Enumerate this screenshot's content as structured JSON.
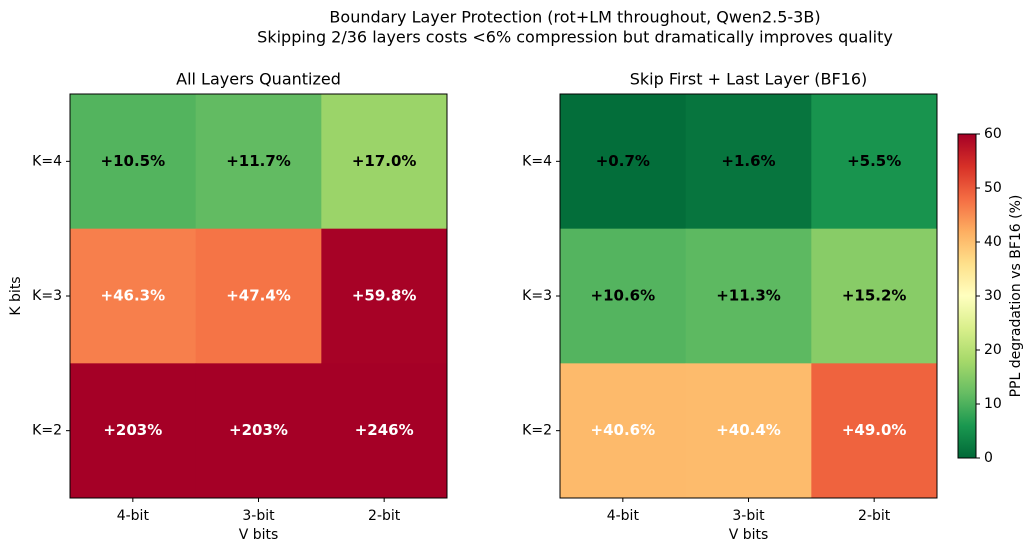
{
  "title": "Boundary Layer Protection (rot+LM throughout, Qwen2.5-3B)",
  "subtitle": "Skipping 2/36 layers costs <6% compression but dramatically improves quality",
  "colorbar": {
    "label": "PPL degradation vs BF16 (%)",
    "colormap": "RdYlGn_r",
    "lim": [
      0,
      60
    ],
    "ticks": [
      0,
      10,
      20,
      30,
      40,
      50,
      60
    ]
  },
  "chart_data": [
    {
      "type": "heatmap",
      "title": "All Layers Quantized",
      "xlabel": "V bits",
      "ylabel": "K bits",
      "x": [
        "4-bit",
        "3-bit",
        "2-bit"
      ],
      "y": [
        "K=4",
        "K=3",
        "K=2"
      ],
      "values": [
        [
          10.5,
          11.7,
          17.0
        ],
        [
          46.3,
          47.4,
          59.8
        ],
        [
          203,
          203,
          246
        ]
      ],
      "value_labels": [
        [
          "+10.5%",
          "+11.7%",
          "+17.0%"
        ],
        [
          "+46.3%",
          "+47.4%",
          "+59.8%"
        ],
        [
          "+203%",
          "+203%",
          "+246%"
        ]
      ]
    },
    {
      "type": "heatmap",
      "title": "Skip First + Last Layer (BF16)",
      "xlabel": "V bits",
      "x": [
        "4-bit",
        "3-bit",
        "2-bit"
      ],
      "y": [
        "K=4",
        "K=3",
        "K=2"
      ],
      "values": [
        [
          0.7,
          1.6,
          5.5
        ],
        [
          10.6,
          11.3,
          15.2
        ],
        [
          40.6,
          40.4,
          49.0
        ]
      ],
      "value_labels": [
        [
          "+0.7%",
          "+1.6%",
          "+5.5%"
        ],
        [
          "+10.6%",
          "+11.3%",
          "+15.2%"
        ],
        [
          "+40.6%",
          "+40.4%",
          "+49.0%"
        ]
      ]
    }
  ]
}
